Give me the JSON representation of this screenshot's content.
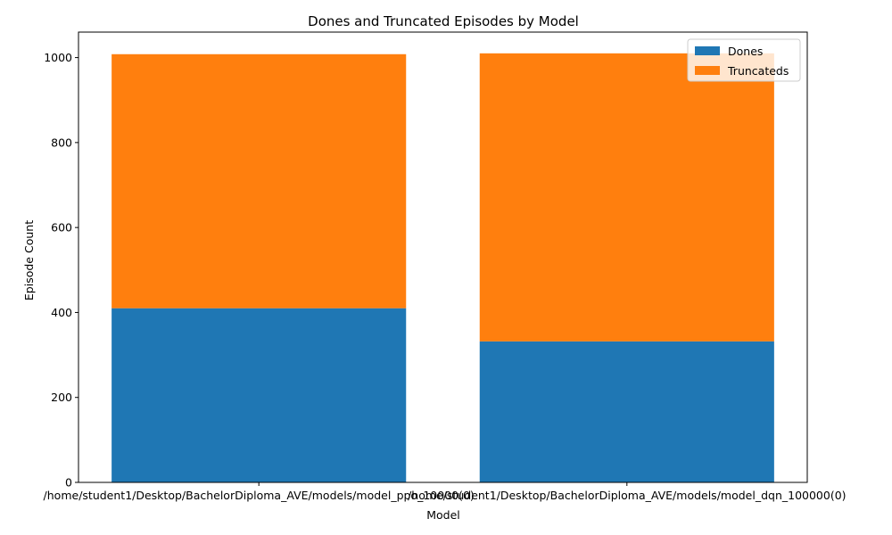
{
  "chart_data": {
    "type": "bar",
    "stacked": true,
    "title": "Dones and Truncated Episodes by Model",
    "xlabel": "Model",
    "ylabel": "Episode Count",
    "categories": [
      "/home/student1/Desktop/BachelorDiploma_AVE/models/model_ppo_10000(0)",
      "/home/student1/Desktop/BachelorDiploma_AVE/models/model_dqn_100000(0)"
    ],
    "series": [
      {
        "name": "Dones",
        "values": [
          410,
          332
        ],
        "color": "#1f77b4"
      },
      {
        "name": "Truncateds",
        "values": [
          598,
          678
        ],
        "color": "#ff7f0e"
      }
    ],
    "ylim": [
      0,
      1060
    ],
    "yticks": [
      0,
      200,
      400,
      600,
      800,
      1000
    ],
    "grid": false,
    "legend": "top-right"
  }
}
